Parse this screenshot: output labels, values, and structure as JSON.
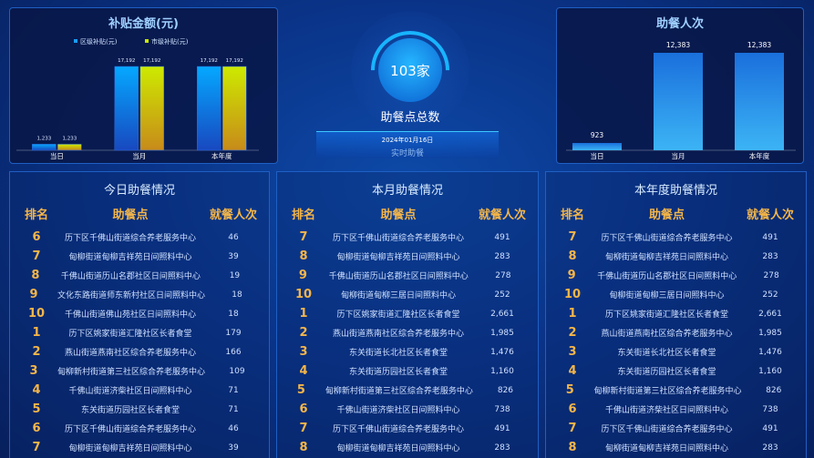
{
  "subsidy": {
    "title": "补贴金额(元)"
  },
  "meals": {
    "title": "助餐人次"
  },
  "center": {
    "count": "103家",
    "label": "助餐点总数",
    "date": "2024年01月16日",
    "realtime": "实时助餐"
  },
  "chart_data": [
    {
      "type": "bar",
      "title": "补贴金额(元)",
      "categories": [
        "当日",
        "当月",
        "本年度"
      ],
      "series": [
        {
          "name": "区级补贴(元)",
          "values": [
            1233,
            17192,
            17192
          ],
          "color": "#1a9cf5"
        },
        {
          "name": "市级补贴(元)",
          "values": [
            1233,
            17192,
            17192
          ],
          "color": "#c8e600"
        }
      ],
      "ylim": [
        0,
        17192
      ]
    },
    {
      "type": "bar",
      "title": "助餐人次",
      "categories": [
        "当日",
        "当月",
        "本年度"
      ],
      "values": [
        923,
        12383,
        12383
      ],
      "color": "#2f9af0",
      "ylim": [
        0,
        12383
      ]
    }
  ],
  "tables": [
    {
      "title": "今日助餐情况",
      "headers": [
        "排名",
        "助餐点",
        "就餐人次"
      ],
      "rows": [
        [
          "6",
          "历下区千佛山街道综合养老服务中心",
          "46"
        ],
        [
          "7",
          "甸柳街道甸柳吉祥苑日间照料中心",
          "39"
        ],
        [
          "8",
          "千佛山街道历山名郡社区日间照料中心",
          "19"
        ],
        [
          "9",
          "文化东路街道师东新村社区日间照料中心",
          "18"
        ],
        [
          "10",
          "千佛山街道佛山苑社区日间照料中心",
          "18"
        ],
        [
          "1",
          "历下区姚家街道汇隆社区长者食堂",
          "179"
        ],
        [
          "2",
          "燕山街道燕南社区综合养老服务中心",
          "166"
        ],
        [
          "3",
          "甸柳新村街道第三社区综合养老服务中心",
          "109"
        ],
        [
          "4",
          "千佛山街道济柴社区日间照料中心",
          "71"
        ],
        [
          "5",
          "东关街道历园社区长者食堂",
          "71"
        ],
        [
          "6",
          "历下区千佛山街道综合养老服务中心",
          "46"
        ],
        [
          "7",
          "甸柳街道甸柳吉祥苑日间照料中心",
          "39"
        ]
      ]
    },
    {
      "title": "本月助餐情况",
      "headers": [
        "排名",
        "助餐点",
        "就餐人次"
      ],
      "rows": [
        [
          "7",
          "历下区千佛山街道综合养老服务中心",
          "491"
        ],
        [
          "8",
          "甸柳街道甸柳吉祥苑日间照料中心",
          "283"
        ],
        [
          "9",
          "千佛山街道历山名郡社区日间照料中心",
          "278"
        ],
        [
          "10",
          "甸柳街道甸柳三居日间照料中心",
          "252"
        ],
        [
          "1",
          "历下区姚家街道汇隆社区长者食堂",
          "2,661"
        ],
        [
          "2",
          "燕山街道燕南社区综合养老服务中心",
          "1,985"
        ],
        [
          "3",
          "东关街道长北社区长者食堂",
          "1,476"
        ],
        [
          "4",
          "东关街道历园社区长者食堂",
          "1,160"
        ],
        [
          "5",
          "甸柳新村街道第三社区综合养老服务中心",
          "826"
        ],
        [
          "6",
          "千佛山街道济柴社区日间照料中心",
          "738"
        ],
        [
          "7",
          "历下区千佛山街道综合养老服务中心",
          "491"
        ],
        [
          "8",
          "甸柳街道甸柳吉祥苑日间照料中心",
          "283"
        ]
      ]
    },
    {
      "title": "本年度助餐情况",
      "headers": [
        "排名",
        "助餐点",
        "就餐人次"
      ],
      "rows": [
        [
          "7",
          "历下区千佛山街道综合养老服务中心",
          "491"
        ],
        [
          "8",
          "甸柳街道甸柳吉祥苑日间照料中心",
          "283"
        ],
        [
          "9",
          "千佛山街道历山名郡社区日间照料中心",
          "278"
        ],
        [
          "10",
          "甸柳街道甸柳三居日间照料中心",
          "252"
        ],
        [
          "1",
          "历下区姚家街道汇隆社区长者食堂",
          "2,661"
        ],
        [
          "2",
          "燕山街道燕南社区综合养老服务中心",
          "1,985"
        ],
        [
          "3",
          "东关街道长北社区长者食堂",
          "1,476"
        ],
        [
          "4",
          "东关街道历园社区长者食堂",
          "1,160"
        ],
        [
          "5",
          "甸柳新村街道第三社区综合养老服务中心",
          "826"
        ],
        [
          "6",
          "千佛山街道济柴社区日间照料中心",
          "738"
        ],
        [
          "7",
          "历下区千佛山街道综合养老服务中心",
          "491"
        ],
        [
          "8",
          "甸柳街道甸柳吉祥苑日间照料中心",
          "283"
        ]
      ]
    }
  ]
}
